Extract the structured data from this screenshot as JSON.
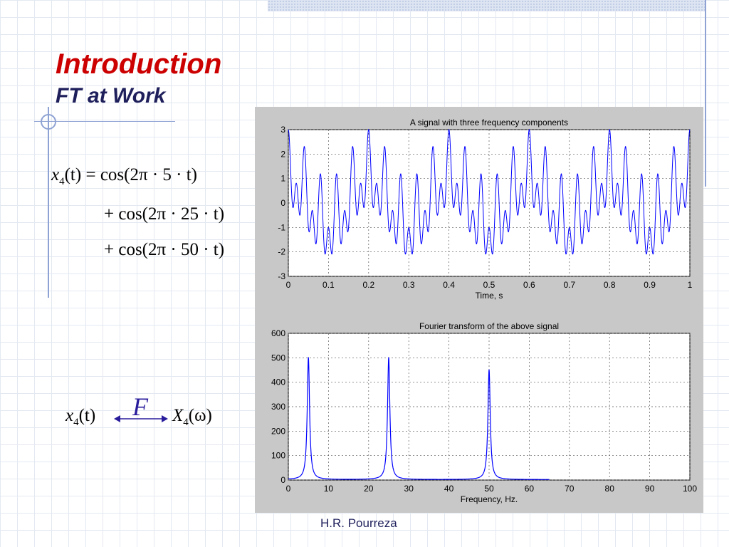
{
  "slide": {
    "title": "Introduction",
    "subtitle": "FT at Work",
    "footer": "H.R. Pourreza"
  },
  "equations": {
    "line1_lhs": "x",
    "line1_sub": "4",
    "line1_arg": "(t)",
    "line1_rhs": "= cos(2π · 5 · t)",
    "line2": "+ cos(2π · 25 · t)",
    "line3": "+ cos(2π · 50 · t)",
    "pair_left": "x",
    "pair_left_sub": "4",
    "pair_left_arg": "(t)",
    "pair_symbol": "F",
    "pair_right": "X",
    "pair_right_sub": "4",
    "pair_right_arg": "(ω)"
  },
  "colors": {
    "plot_line": "#0000ff",
    "figure_bg": "#c8c8c8",
    "title": "#cc0000"
  },
  "chart_data": [
    {
      "type": "line",
      "title": "A signal with three frequency components",
      "xlabel": "Time, s",
      "ylabel": "",
      "xlim": [
        0,
        1
      ],
      "ylim": [
        -3,
        3
      ],
      "xticks": [
        "0",
        "0.1",
        "0.2",
        "0.3",
        "0.4",
        "0.5",
        "0.6",
        "0.7",
        "0.8",
        "0.9",
        "1"
      ],
      "yticks": [
        "3",
        "2",
        "1",
        "0",
        "-1",
        "-2",
        "-3"
      ],
      "grid": true,
      "series": [
        {
          "function": "cos(2*pi*5*t) + cos(2*pi*25*t) + cos(2*pi*50*t)",
          "frequencies": [
            5,
            25,
            50
          ]
        }
      ]
    },
    {
      "type": "line",
      "title": "Fourier transform of the above signal",
      "xlabel": "Frequency, Hz.",
      "ylabel": "",
      "xlim": [
        0,
        100
      ],
      "ylim": [
        0,
        600
      ],
      "xticks": [
        "0",
        "10",
        "20",
        "30",
        "40",
        "50",
        "60",
        "70",
        "80",
        "90",
        "100"
      ],
      "yticks": [
        "600",
        "500",
        "400",
        "300",
        "200",
        "100",
        "0"
      ],
      "grid": true,
      "series": [
        {
          "peaks_hz": [
            5,
            25,
            50
          ],
          "peak_values": [
            500,
            500,
            450
          ],
          "x_extent": [
            0,
            65
          ]
        }
      ]
    }
  ]
}
